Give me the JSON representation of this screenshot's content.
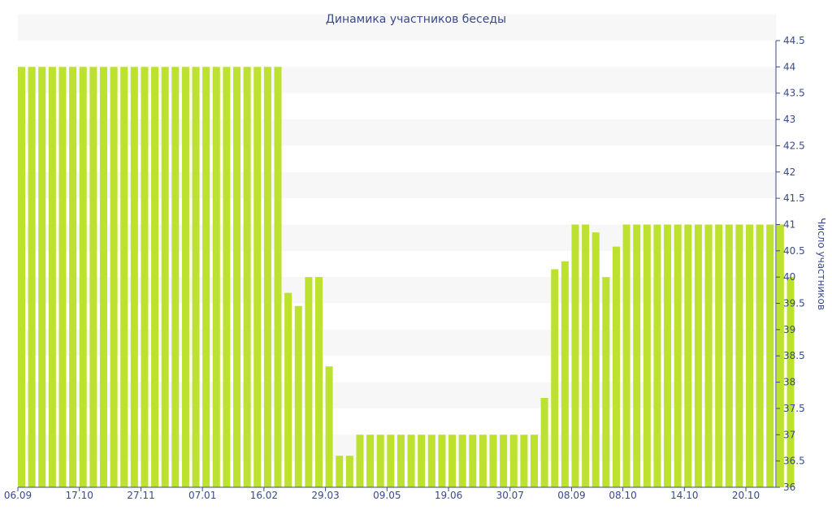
{
  "chart_data": {
    "type": "bar",
    "title": "Динамика участников беседы",
    "xlabel": "",
    "ylabel": "Число участников",
    "ylim": [
      36,
      44.5
    ],
    "y_ticks": [
      36,
      36.5,
      37,
      37.5,
      38,
      38.5,
      39,
      39.5,
      40,
      40.5,
      41,
      41.5,
      42,
      42.5,
      43,
      43.5,
      44,
      44.5
    ],
    "y_axis_side": "right",
    "grid": "alternating-bands",
    "legend": "none",
    "bar_color": "#bde12f",
    "band_color": "#f7f7f7",
    "text_color": "#3a4a8c",
    "x_tick_labels": [
      {
        "label": "06.09",
        "index": 0
      },
      {
        "label": "17.10",
        "index": 6
      },
      {
        "label": "27.11",
        "index": 12
      },
      {
        "label": "07.01",
        "index": 18
      },
      {
        "label": "16.02",
        "index": 24
      },
      {
        "label": "29.03",
        "index": 30
      },
      {
        "label": "09.05",
        "index": 36
      },
      {
        "label": "19.06",
        "index": 42
      },
      {
        "label": "30.07",
        "index": 48
      },
      {
        "label": "08.09",
        "index": 54
      },
      {
        "label": "08.10",
        "index": 59
      },
      {
        "label": "14.10",
        "index": 65
      },
      {
        "label": "20.10",
        "index": 71
      }
    ],
    "values": [
      44,
      44,
      44,
      44,
      44,
      44,
      44,
      44,
      44,
      44,
      44,
      44,
      44,
      44,
      44,
      44,
      44,
      44,
      44,
      44,
      44,
      44,
      44,
      44,
      44,
      44,
      39.7,
      39.45,
      40,
      40,
      38.3,
      36.6,
      36.6,
      37,
      37,
      37,
      37,
      37,
      37,
      37,
      37,
      37,
      37,
      37,
      37,
      37,
      37,
      37,
      37,
      37,
      37,
      37.7,
      40.15,
      40.3,
      41,
      41,
      40.85,
      40,
      40.58,
      41,
      41,
      41,
      41,
      41,
      41,
      41,
      41,
      41,
      41,
      41,
      41,
      41,
      41,
      41,
      41,
      40
    ]
  }
}
